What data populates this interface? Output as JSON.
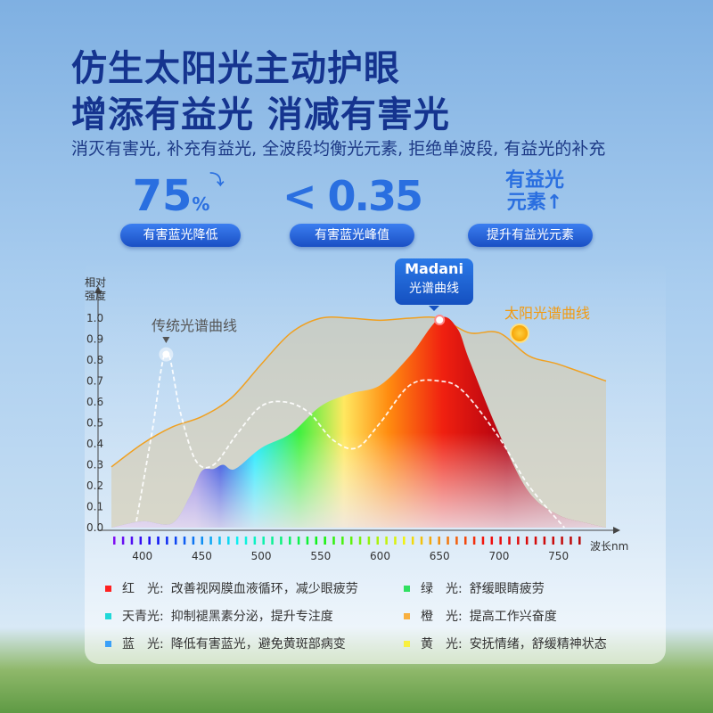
{
  "header": {
    "title_line1": "仿生太阳光主动护眼",
    "title_line2": "增添有益光 消减有害光",
    "subtitle": "消灭有害光, 补充有益光, 全波段均衡光元素, 拒绝单波段, 有益光的补充"
  },
  "metrics": [
    {
      "value": "75",
      "unit": "%",
      "label": "有害蓝光降低"
    },
    {
      "value": "< 0.35",
      "label": "有害蓝光峰值"
    },
    {
      "value_line1": "有益光",
      "value_line2": "元素",
      "label": "提升有益光元素"
    }
  ],
  "chart_data": {
    "type": "area",
    "ylabel": "相对强度",
    "xlabel": "波长nm",
    "xlim": [
      374,
      790
    ],
    "ylim": [
      0,
      1.0
    ],
    "xticks": [
      400,
      450,
      500,
      550,
      600,
      650,
      700,
      750
    ],
    "yticks": [
      "0.0",
      "0.1",
      "0.2",
      "0.3",
      "0.4",
      "0.5",
      "0.6",
      "0.7",
      "0.8",
      "0.9",
      "1.0"
    ],
    "series": [
      {
        "name": "太阳光谱曲线",
        "color": "#f0a020",
        "x": [
          374,
          400,
          425,
          450,
          475,
          500,
          525,
          550,
          575,
          600,
          625,
          650,
          675,
          700,
          725,
          750,
          790
        ],
        "y": [
          0.29,
          0.4,
          0.48,
          0.53,
          0.62,
          0.78,
          0.93,
          1.0,
          1.0,
          0.99,
          1.0,
          1.0,
          0.93,
          0.93,
          0.82,
          0.78,
          0.7
        ]
      },
      {
        "name": "Madani光谱曲线",
        "x": [
          374,
          400,
          425,
          440,
          450,
          460,
          468,
          478,
          500,
          525,
          550,
          575,
          600,
          625,
          650,
          665,
          675,
          700,
          725,
          750,
          775,
          790
        ],
        "y": [
          0.0,
          0.03,
          0.02,
          0.15,
          0.27,
          0.28,
          0.3,
          0.28,
          0.38,
          0.45,
          0.58,
          0.64,
          0.68,
          0.82,
          1.0,
          0.95,
          0.8,
          0.45,
          0.17,
          0.06,
          0.02,
          0.0
        ]
      },
      {
        "name": "传统光谱曲线",
        "color": "#ffffff",
        "x": [
          395,
          408,
          420,
          432,
          445,
          460,
          480,
          500,
          520,
          540,
          560,
          580,
          600,
          625,
          650,
          670,
          700,
          725,
          755
        ],
        "y": [
          0.03,
          0.45,
          0.84,
          0.55,
          0.32,
          0.3,
          0.45,
          0.58,
          0.6,
          0.55,
          0.42,
          0.38,
          0.5,
          0.68,
          0.7,
          0.65,
          0.43,
          0.2,
          0.0
        ]
      }
    ],
    "annotations": {
      "madani_label_line1": "Madani",
      "madani_label_line2": "光谱曲线",
      "traditional_label": "传统光谱曲线",
      "sun_label": "太阳光谱曲线"
    }
  },
  "legend": [
    {
      "color": "#ff2020",
      "name": "红　光:",
      "desc": "改善视网膜血液循环，减少眼疲劳"
    },
    {
      "color": "#30e060",
      "name": "绿　光:",
      "desc": "舒缓眼睛疲劳"
    },
    {
      "color": "#20d8d8",
      "name": "天青光:",
      "desc": "抑制褪黑素分泌，提升专注度"
    },
    {
      "color": "#f8b040",
      "name": "橙　光:",
      "desc": "提高工作兴奋度"
    },
    {
      "color": "#3aa0f8",
      "name": "蓝　光:",
      "desc": "降低有害蓝光，避免黄斑部病变"
    },
    {
      "color": "#f8f040",
      "name": "黄　光:",
      "desc": "安抚情绪，舒缓精神状态"
    }
  ]
}
